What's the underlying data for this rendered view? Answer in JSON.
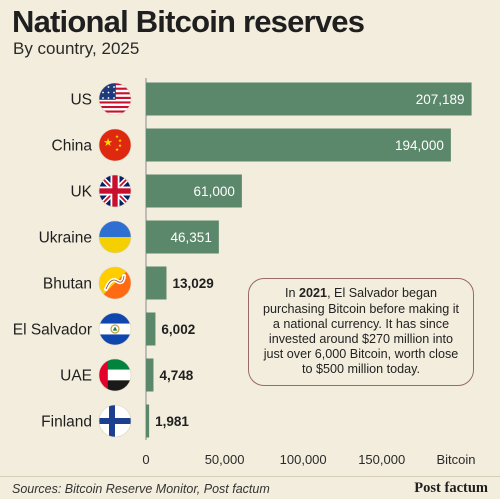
{
  "title": "National Bitcoin reserves",
  "subtitle": "By country, 2025",
  "callout": {
    "year": "2021",
    "pre": "In ",
    "post": ", El Salvador began purchasing Bitcoin before making it a national currency. It has since invested around $270 million into just over 6,000 Bitcoin, worth close to $500 million today."
  },
  "sources": "Sources: Bitcoin Reserve Monitor, Post factum",
  "brand": "Post factum",
  "colors": {
    "bar": "#5b876a",
    "background": "#f3eddd",
    "callout_border": "#9a6a66"
  },
  "chart_data": {
    "type": "bar",
    "orientation": "horizontal",
    "title": "National Bitcoin reserves",
    "subtitle": "By country, 2025",
    "categories": [
      "US",
      "China",
      "UK",
      "Ukraine",
      "Bhutan",
      "El Salvador",
      "UAE",
      "Finland"
    ],
    "values": [
      207189,
      194000,
      61000,
      46351,
      13029,
      6002,
      4748,
      1981
    ],
    "value_labels": [
      "207,189",
      "194,000",
      "61,000",
      "46,351",
      "13,029",
      "6,002",
      "4,748",
      "1,981"
    ],
    "flag_icons": [
      "us-flag-icon",
      "china-flag-icon",
      "uk-flag-icon",
      "ukraine-flag-icon",
      "bhutan-flag-icon",
      "el-salvador-flag-icon",
      "uae-flag-icon",
      "finland-flag-icon"
    ],
    "xlim": [
      0,
      210000
    ],
    "xticks": [
      0,
      50000,
      100000,
      150000
    ],
    "xtick_labels": [
      "0",
      "50,000",
      "100,000",
      "150,000"
    ],
    "xlabel": "Bitcoin",
    "grid": false
  }
}
